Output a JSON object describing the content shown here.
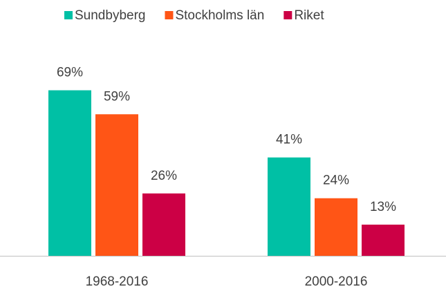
{
  "chart_data": {
    "type": "bar",
    "categories": [
      "1968-2016",
      "2000-2016"
    ],
    "series": [
      {
        "name": "Sundbyberg",
        "color": "#00c0a5",
        "values": [
          69,
          41
        ],
        "value_labels": [
          "69%",
          "41%"
        ]
      },
      {
        "name": "Stockholms län",
        "color": "#ff5516",
        "values": [
          59,
          24
        ],
        "value_labels": [
          "59%",
          "24%"
        ]
      },
      {
        "name": "Riket",
        "color": "#cc0045",
        "values": [
          26,
          13
        ],
        "value_labels": [
          "26%",
          "13%"
        ]
      }
    ],
    "legend": "top"
  }
}
